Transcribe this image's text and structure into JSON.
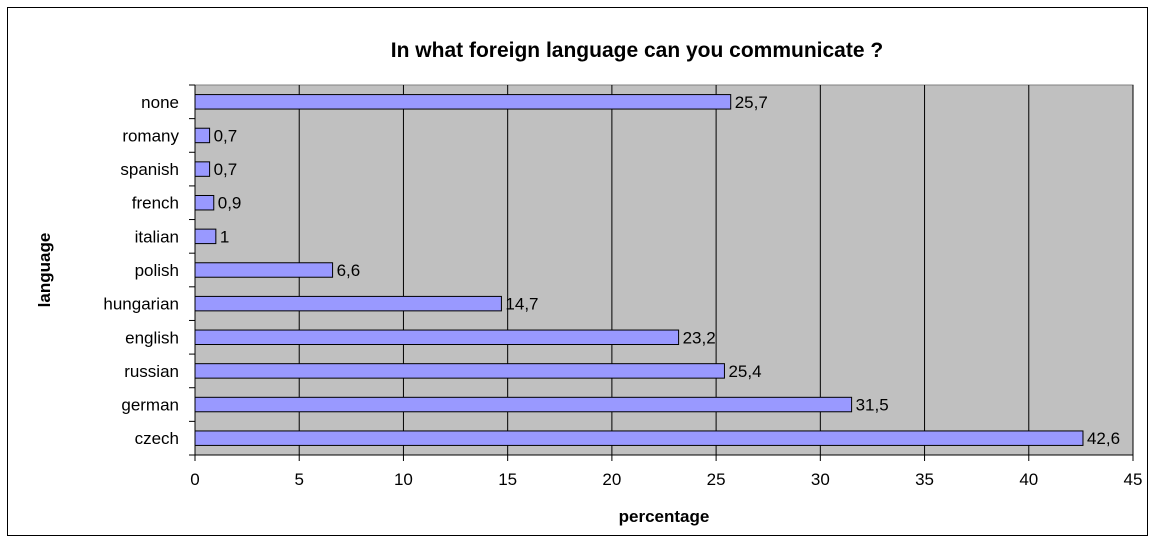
{
  "chart_data": {
    "type": "bar",
    "orientation": "horizontal",
    "title": "In what foreign language can you communicate ?",
    "xlabel": "percentage",
    "ylabel": "language",
    "categories": [
      "none",
      "romany",
      "spanish",
      "french",
      "italian",
      "polish",
      "hungarian",
      "english",
      "russian",
      "german",
      "czech"
    ],
    "values": [
      25.7,
      0.7,
      0.7,
      0.9,
      1,
      6.6,
      14.7,
      23.2,
      25.4,
      31.5,
      42.6
    ],
    "data_labels": [
      "25,7",
      "0,7",
      "0,7",
      "0,9",
      "1",
      "6,6",
      "14,7",
      "23,2",
      "25,4",
      "31,5",
      "42,6"
    ],
    "xlim": [
      0,
      45
    ],
    "xticks": [
      0,
      5,
      10,
      15,
      20,
      25,
      30,
      35,
      40,
      45
    ],
    "grid": true,
    "legend": "none",
    "colors": {
      "bar_fill": "#9999ff",
      "bar_stroke": "#000000",
      "plot_background": "#c0c0c0",
      "gridline": "#000000"
    }
  }
}
